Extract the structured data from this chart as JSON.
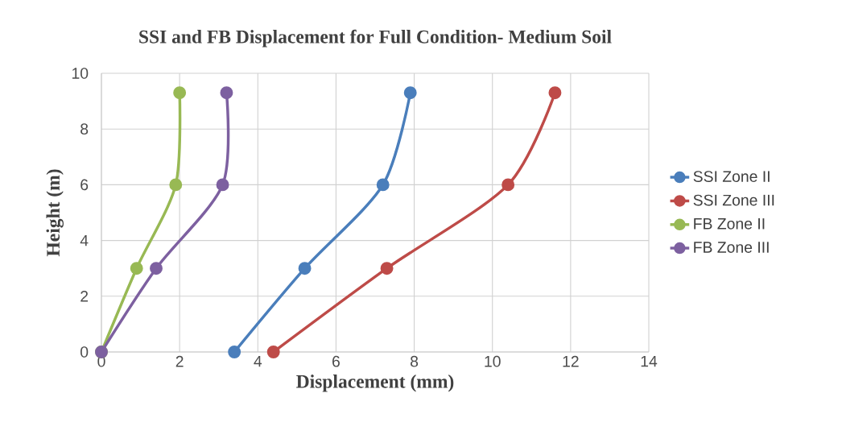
{
  "chart_data": {
    "type": "line",
    "title": "SSI and FB Displacement for Full Condition- Medium Soil",
    "xlabel": "Displacement (mm)",
    "ylabel": "Height (m)",
    "xlim": [
      0,
      14
    ],
    "ylim": [
      0,
      10
    ],
    "xticks": [
      0,
      2,
      4,
      6,
      8,
      10,
      12,
      14
    ],
    "yticks": [
      0,
      2,
      4,
      6,
      8,
      10
    ],
    "grid": true,
    "legend": "right",
    "marker": "circle",
    "line_style": "solid",
    "series": [
      {
        "name": "SSI Zone II",
        "color": "#4a7ebb",
        "x": [
          3.4,
          5.2,
          7.2,
          7.9
        ],
        "values": [
          0,
          3,
          6,
          9.3
        ]
      },
      {
        "name": "SSI Zone III",
        "color": "#be4b48",
        "x": [
          4.4,
          7.3,
          10.4,
          11.6
        ],
        "values": [
          0,
          3,
          6,
          9.3
        ]
      },
      {
        "name": "FB Zone II",
        "color": "#98b954",
        "x": [
          0,
          0.9,
          1.9,
          2.0
        ],
        "values": [
          0,
          3,
          6,
          9.3
        ]
      },
      {
        "name": "FB Zone III",
        "color": "#7d60a0",
        "x": [
          0,
          1.4,
          3.1,
          3.2
        ],
        "values": [
          0,
          3,
          6,
          9.3
        ]
      }
    ]
  }
}
